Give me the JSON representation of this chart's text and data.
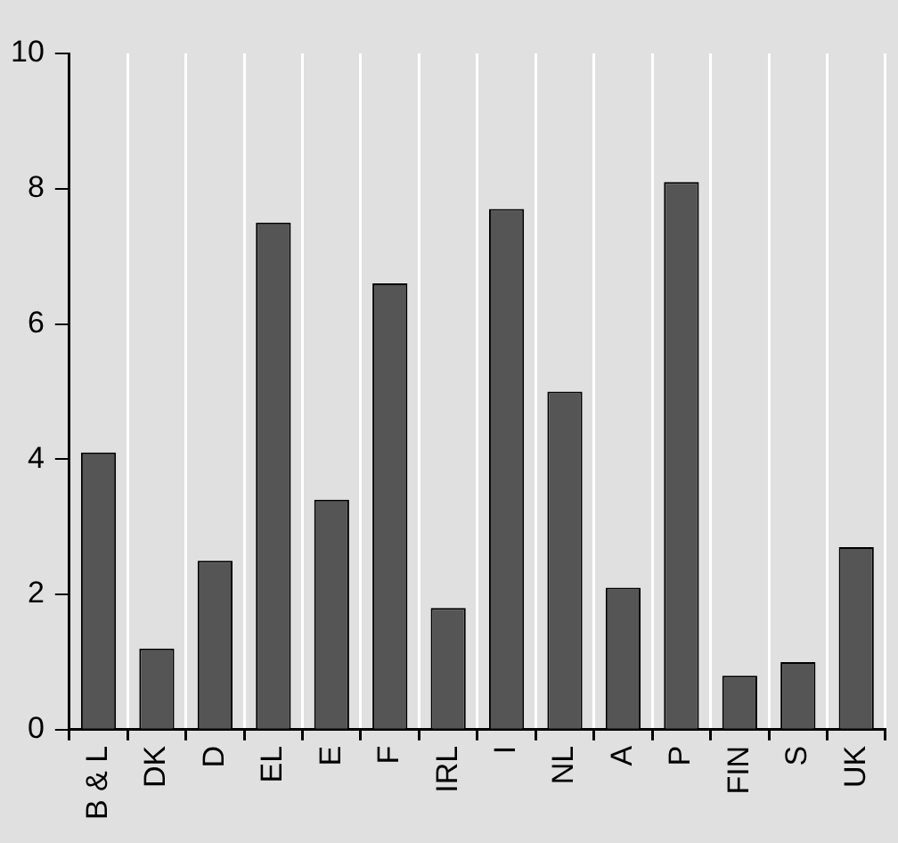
{
  "chart_data": {
    "type": "bar",
    "categories": [
      "B & L",
      "DK",
      "D",
      "EL",
      "E",
      "F",
      "IRL",
      "I",
      "NL",
      "A",
      "P",
      "FIN",
      "S",
      "UK"
    ],
    "values": [
      4.1,
      1.2,
      2.5,
      7.5,
      3.4,
      6.6,
      1.8,
      7.7,
      5.0,
      2.1,
      8.1,
      0.8,
      1.0,
      2.7
    ],
    "color": "#555555",
    "ylim": [
      0,
      10
    ],
    "yticks": [
      0,
      2,
      4,
      6,
      8,
      10
    ],
    "grid": "x"
  }
}
